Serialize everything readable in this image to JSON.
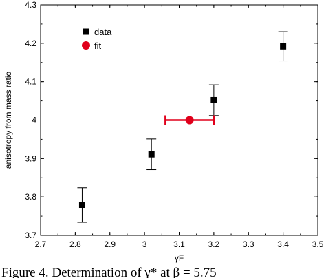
{
  "chart_data": {
    "type": "scatter",
    "xlabel": "γF",
    "ylabel": "anisotropy from mass ratio",
    "xlim": [
      2.7,
      3.5
    ],
    "ylim": [
      3.7,
      4.3
    ],
    "x_ticks": [
      "2.7",
      "2.8",
      "2.9",
      "3",
      "3.1",
      "3.2",
      "3.3",
      "3.4",
      "3.5"
    ],
    "y_ticks": [
      "3.7",
      "3.8",
      "3.9",
      "4",
      "4.1",
      "4.2",
      "4.3"
    ],
    "grid": false,
    "legend_position": "top-left",
    "reference_line": {
      "y": 4.0,
      "style": "dotted",
      "color": "#2a2ad0"
    },
    "series": [
      {
        "name": "data",
        "marker": "square",
        "color": "#000000",
        "points": [
          {
            "x": 2.82,
            "y": 3.779,
            "err_low": 0.045,
            "err_high": 0.045
          },
          {
            "x": 3.02,
            "y": 3.911,
            "err_low": 0.04,
            "err_high": 0.04
          },
          {
            "x": 3.2,
            "y": 4.052,
            "err_low": 0.04,
            "err_high": 0.04
          },
          {
            "x": 3.4,
            "y": 4.192,
            "err_low": 0.038,
            "err_high": 0.038
          }
        ]
      },
      {
        "name": "fit",
        "marker": "circle",
        "color": "#e0001b",
        "points": [
          {
            "x": 3.13,
            "y": 4.0,
            "xerr_low": 0.07,
            "xerr_high": 0.07
          }
        ]
      }
    ]
  },
  "caption": "Figure 4. Determination of γ* at β = 5.75"
}
